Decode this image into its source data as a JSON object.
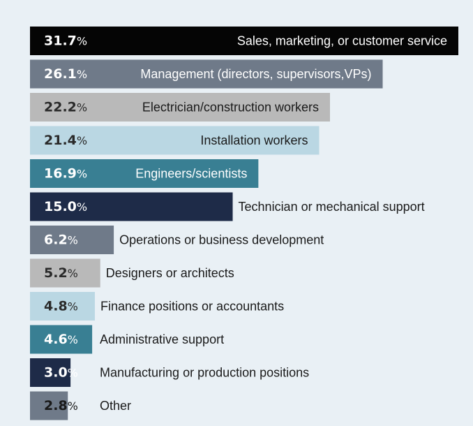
{
  "chart_data": {
    "type": "bar",
    "orientation": "horizontal",
    "title": "",
    "xlabel": "",
    "ylabel": "",
    "xlim": [
      0,
      31.7
    ],
    "grid": false,
    "legend": "none",
    "categories": [
      "Sales, marketing, or customer service",
      "Management (directors, supervisors,VPs)",
      "Electrician/construction workers",
      "Installation workers",
      "Engineers/scientists",
      "Technician or mechanical support",
      "Operations or business development",
      "Designers or architects",
      "Finance positions or accountants",
      "Administrative support",
      "Manufacturing or production positions",
      "Other"
    ],
    "values": [
      31.7,
      26.1,
      22.2,
      21.4,
      16.9,
      15.0,
      6.2,
      5.2,
      4.8,
      4.6,
      3.0,
      2.8
    ],
    "value_labels": [
      "31.7",
      "26.1",
      "22.2",
      "21.4",
      "16.9",
      "15.0",
      "6.2",
      "5.2",
      "4.8",
      "4.6",
      "3.0",
      "2.8"
    ],
    "value_suffix": "%",
    "colors": [
      "#050505",
      "#6f7a89",
      "#b9b9b9",
      "#bad7e3",
      "#397f93",
      "#1e2b48",
      "#6f7a89",
      "#b9b9b9",
      "#bad7e3",
      "#397f93",
      "#1e2b48",
      "#6f7a89"
    ],
    "value_text_colors": [
      "#ffffff",
      "#ffffff",
      "#2a2a2a",
      "#2a2a2a",
      "#ffffff",
      "#ffffff",
      "#ffffff",
      "#2a2a2a",
      "#2a2a2a",
      "#ffffff",
      "#ffffff",
      "#1a1a1a"
    ],
    "category_text_colors": [
      "#ffffff",
      "#ffffff",
      "#1a1a1a",
      "#1a1a1a",
      "#ffffff",
      "#1a1a1a",
      "#1a1a1a",
      "#1a1a1a",
      "#1a1a1a",
      "#1a1a1a",
      "#1a1a1a",
      "#1a1a1a"
    ]
  }
}
